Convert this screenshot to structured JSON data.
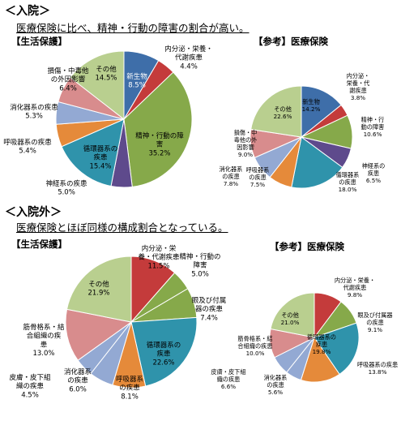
{
  "sections": [
    {
      "title": "＜入院＞",
      "desc": "医療保険に比べ、精神・行動の障害の割合が高い。"
    },
    {
      "title": "＜入院外＞",
      "desc": "医療保険とほぼ同様の構成割合となっている。"
    }
  ],
  "colors": {
    "新生物": "#3e6ea9",
    "内分泌・栄養・代謝疾患": "#c43b3b",
    "精神・行動の障害": "#86a94a",
    "神経系の疾患": "#5e4a8c",
    "循環器系の疾患": "#2f93ab",
    "呼吸器系の疾患": "#e58a3a",
    "消化器系の疾患": "#93a9d3",
    "損傷・中毒他の外因影響": "#d88c8d",
    "その他": "#b9cf8f",
    "眼及び付属器の疾患": "#86a94a",
    "筋骨格系・結合組織の疾患": "#d88c8d",
    "皮膚・皮下組織の疾患": "#93a9d3"
  },
  "chart_data": [
    {
      "type": "pie",
      "title": "【生活保護】",
      "slices": [
        {
          "label": "新生物",
          "value": 8.5,
          "display": "新生物\n8.5%"
        },
        {
          "label": "内分泌・栄養・代謝疾患",
          "value": 4.4,
          "display": "内分泌・栄養・\n代謝疾患\n4.4%"
        },
        {
          "label": "精神・行動の障害",
          "value": 35.2,
          "display": "精神・行動の障\n害\n35.2%"
        },
        {
          "label": "神経系の疾患",
          "value": 5.0,
          "display": "神経系の疾患\n5.0%"
        },
        {
          "label": "循環器系の疾患",
          "value": 15.4,
          "display": "循環器系の\n疾患\n15.4%"
        },
        {
          "label": "呼吸器系の疾患",
          "value": 5.4,
          "display": "呼吸器系の疾患\n5.4%"
        },
        {
          "label": "消化器系の疾患",
          "value": 5.3,
          "display": "消化器系の疾患\n5.3%"
        },
        {
          "label": "損傷・中毒他の外因影響",
          "value": 6.4,
          "display": "損傷・中毒他\nの外因影響\n6.4%"
        },
        {
          "label": "その他",
          "value": 14.5,
          "display": "その他\n14.5%"
        }
      ]
    },
    {
      "type": "pie",
      "title": "【参考】医療保険",
      "slices": [
        {
          "label": "新生物",
          "value": 14.2,
          "display": "新生物\n14.2%"
        },
        {
          "label": "内分泌・栄養・代謝疾患",
          "value": 3.8,
          "display": "内分泌・\n栄養・代\n謝疾患\n3.8%"
        },
        {
          "label": "精神・行動の障害",
          "value": 10.6,
          "display": "精神・行\n動の障害\n10.6%"
        },
        {
          "label": "神経系の疾患",
          "value": 6.5,
          "display": "神経系の\n疾患\n6.5%"
        },
        {
          "label": "循環器系の疾患",
          "value": 18.0,
          "display": "循環器系\nの疾患\n18.0%"
        },
        {
          "label": "呼吸器系の疾患",
          "value": 7.5,
          "display": "呼吸器系\nの疾患\n7.5%"
        },
        {
          "label": "消化器系の疾患",
          "value": 7.8,
          "display": "消化器系\nの疾患\n7.8%"
        },
        {
          "label": "損傷・中毒他の外因影響",
          "value": 9.0,
          "display": "損傷・中\n毒他の外\n因影響\n9.0%"
        },
        {
          "label": "その他",
          "value": 22.6,
          "display": "その他\n22.6%"
        }
      ]
    },
    {
      "type": "pie",
      "title": "【生活保護】",
      "slices": [
        {
          "label": "内分泌・栄養・代謝疾患",
          "value": 11.5,
          "display": "内分泌・栄\n養・代謝疾患\n11.5%"
        },
        {
          "label": "精神・行動の障害",
          "value": 5.0,
          "display": "精神・行動の\n障害\n5.0%"
        },
        {
          "label": "眼及び付属器の疾患",
          "value": 7.4,
          "display": "眼及び付属\n器の疾患\n7.4%"
        },
        {
          "label": "循環器系の疾患",
          "value": 22.6,
          "display": "循環器系の\n疾患\n22.6%"
        },
        {
          "label": "呼吸器系の疾患",
          "value": 8.1,
          "display": "呼吸器系\nの疾患\n8.1%"
        },
        {
          "label": "消化器系の疾患",
          "value": 6.0,
          "display": "消化器系\nの疾患\n6.0%"
        },
        {
          "label": "皮膚・皮下組織の疾患",
          "value": 4.5,
          "display": "皮膚・皮下組\n織の疾患\n4.5%"
        },
        {
          "label": "筋骨格系・結合組織の疾患",
          "value": 13.0,
          "display": "筋骨格系・結\n合組織の疾\n患\n13.0%"
        },
        {
          "label": "その他",
          "value": 21.9,
          "display": "その他\n21.9%"
        }
      ]
    },
    {
      "type": "pie",
      "title": "【参考】医療保険",
      "slices": [
        {
          "label": "内分泌・栄養・代謝疾患",
          "value": 9.8,
          "display": "内分泌・栄養・\n代謝疾患\n9.8%"
        },
        {
          "label": "眼及び付属器の疾患",
          "value": 9.1,
          "display": "眼及び付属器\nの疾患\n9.1%"
        },
        {
          "label": "循環器系の疾患",
          "value": 19.8,
          "display": "循環器系の\n疾患\n19.8%"
        },
        {
          "label": "呼吸器系の疾患",
          "value": 13.8,
          "display": "呼吸器系の疾患\n13.8%"
        },
        {
          "label": "消化器系の疾患",
          "value": 5.6,
          "display": "消化器系\nの疾患\n5.6%"
        },
        {
          "label": "皮膚・皮下組織の疾患",
          "value": 6.6,
          "display": "皮膚・皮下組\n織の疾患\n6.6%"
        },
        {
          "label": "筋骨格系・結合組織の疾患",
          "value": 10.0,
          "display": "筋骨格系・結\n合組織の疾患\n10.0%"
        },
        {
          "label": "その他",
          "value": 21.0,
          "display": "その他\n21.0%"
        }
      ]
    }
  ]
}
